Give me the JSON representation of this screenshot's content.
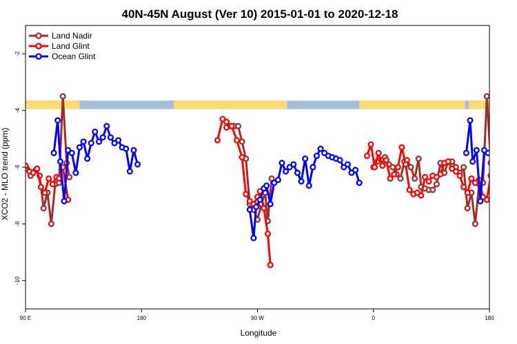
{
  "chart_data": {
    "type": "line",
    "title": "40N-45N August (Ver 10)   2015-01-01 to 2020-12-18",
    "xlabel": "Longitude",
    "ylabel": "XCO2 - MLO trend (ppm)",
    "xlim": [
      90,
      450
    ],
    "ylim": [
      -11,
      -1
    ],
    "x_ticks": [
      {
        "value": 90,
        "label": "90 E"
      },
      {
        "value": 180,
        "label": "180"
      },
      {
        "value": 270,
        "label": "90 W"
      },
      {
        "value": 360,
        "label": "0"
      },
      {
        "value": 450,
        "label": "90 E"
      }
    ],
    "x_ticks_right": [
      {
        "value": 450,
        "label": "180"
      }
    ],
    "y_ticks": [
      {
        "value": -2,
        "label": "-2"
      },
      {
        "value": -4,
        "label": "-4"
      },
      {
        "value": -6,
        "label": "-6"
      },
      {
        "value": -8,
        "label": "-8"
      },
      {
        "value": -10,
        "label": "-10"
      }
    ],
    "grid": false,
    "legend_position": "top-left",
    "land_ocean_band": {
      "y_range": [
        -3.95,
        -3.65
      ],
      "land_color": "#FADB74",
      "ocean_color": "#A6BDDB",
      "land_spans": [
        [
          90,
          132
        ],
        [
          205,
          293
        ],
        [
          349,
          431
        ],
        [
          434,
          450
        ]
      ]
    },
    "series": [
      {
        "name": "Land Nadir",
        "color": "#A52A2A",
        "points": [
          [
            91,
            -6.05
          ],
          [
            94,
            -6.3
          ],
          [
            98,
            -6.1
          ],
          [
            101,
            -6.3
          ],
          [
            104,
            -7.45
          ],
          [
            107,
            -6.9
          ],
          [
            110,
            -8.0
          ],
          [
            113,
            -6.6
          ],
          [
            116,
            -6.55
          ],
          [
            119,
            -3.5
          ],
          [
            122,
            -5.85
          ],
          [
            124,
            -6.35
          ],
          [
            null,
            null
          ],
          [
            246,
            -4.6
          ],
          [
            249,
            -4.55
          ],
          [
            252,
            -4.55
          ],
          [
            255,
            -4.55
          ],
          [
            258,
            -5.1
          ],
          [
            261,
            -5.7
          ],
          [
            264,
            -7.3
          ],
          [
            267,
            -7.5
          ],
          [
            270,
            -7.85
          ],
          [
            273,
            -7.3
          ],
          [
            276,
            -6.9
          ],
          [
            278,
            -7.9
          ],
          [
            281,
            -6.4
          ],
          [
            null,
            null
          ],
          [
            360,
            -6.0
          ],
          [
            363,
            -5.8
          ],
          [
            366,
            -5.75
          ],
          [
            369,
            -5.65
          ],
          [
            372,
            -5.9
          ],
          [
            375,
            -6.0
          ],
          [
            378,
            -6.25
          ],
          [
            381,
            -6.4
          ],
          [
            384,
            -5.8
          ],
          [
            386,
            -5.75
          ],
          [
            389,
            -6.0
          ],
          [
            392,
            -6.4
          ],
          [
            395,
            -5.7
          ],
          [
            397,
            -6.7
          ],
          [
            400,
            -6.75
          ],
          [
            403,
            -6.8
          ],
          [
            406,
            -6.8
          ],
          [
            409,
            -6.6
          ],
          [
            412,
            -5.85
          ],
          [
            415,
            -6.2
          ],
          [
            418,
            -5.8
          ],
          [
            421,
            -5.8
          ],
          [
            424,
            -6.0
          ],
          [
            427,
            -6.2
          ],
          [
            430,
            -6.0
          ],
          [
            433,
            -7.45
          ],
          [
            436,
            -6.9
          ],
          [
            439,
            -8.0
          ],
          [
            442,
            -6.6
          ],
          [
            445,
            -6.55
          ],
          [
            448,
            -3.5
          ],
          [
            451,
            -5.85
          ]
        ]
      },
      {
        "name": "Land Glint",
        "color": "#FF0000",
        "points": [
          [
            90,
            -5.95
          ],
          [
            93,
            -6.15
          ],
          [
            96,
            -6.2
          ],
          [
            99,
            -6.05
          ],
          [
            102,
            -6.7
          ],
          [
            105,
            -6.9
          ],
          [
            108,
            -6.4
          ],
          [
            111,
            -6.6
          ],
          [
            114,
            -6.35
          ],
          [
            116,
            -6.4
          ],
          [
            119,
            -6.0
          ],
          [
            123,
            -7.15
          ],
          [
            null,
            null
          ],
          [
            239,
            -5.05
          ],
          [
            243,
            -4.3
          ],
          [
            246,
            -4.4
          ],
          [
            250,
            -4.55
          ],
          [
            254,
            -5.05
          ],
          [
            258,
            -5.65
          ],
          [
            261,
            -6.95
          ],
          [
            264,
            -7.2
          ],
          [
            267,
            -7.3
          ],
          [
            270,
            -7.05
          ],
          [
            272,
            -6.85
          ],
          [
            275,
            -7.45
          ],
          [
            278,
            -8.35
          ],
          [
            280,
            -9.45
          ],
          [
            null,
            null
          ],
          [
            355,
            -5.6
          ],
          [
            358,
            -5.2
          ],
          [
            361,
            -6.0
          ],
          [
            364,
            -5.5
          ],
          [
            367,
            -5.95
          ],
          [
            370,
            -5.75
          ],
          [
            373,
            -6.4
          ],
          [
            376,
            -6.25
          ],
          [
            379,
            -6.0
          ],
          [
            382,
            -5.3
          ],
          [
            385,
            -5.9
          ],
          [
            388,
            -6.8
          ],
          [
            391,
            -6.95
          ],
          [
            394,
            -6.9
          ],
          [
            397,
            -7.0
          ],
          [
            400,
            -6.35
          ],
          [
            403,
            -6.5
          ],
          [
            406,
            -6.3
          ],
          [
            409,
            -6.35
          ],
          [
            412,
            -6.25
          ],
          [
            415,
            -5.85
          ],
          [
            418,
            -5.8
          ],
          [
            421,
            -6.05
          ],
          [
            424,
            -6.15
          ],
          [
            427,
            -6.3
          ],
          [
            430,
            -6.7
          ],
          [
            433,
            -6.9
          ],
          [
            436,
            -6.4
          ],
          [
            439,
            -6.55
          ],
          [
            442,
            -6.45
          ],
          [
            445,
            -7.05
          ],
          [
            448,
            -7.15
          ],
          [
            451,
            -6.3
          ]
        ]
      },
      {
        "name": "Ocean Glint",
        "color": "#0000FF",
        "points": [
          [
            120,
            -7.2
          ],
          [
            123,
            -5.4
          ],
          [
            126,
            -5.5
          ],
          [
            129,
            -6.2
          ],
          [
            132,
            -5.3
          ],
          [
            135,
            -5.1
          ],
          [
            138,
            -5.7
          ],
          [
            141,
            -5.15
          ],
          [
            144,
            -4.75
          ],
          [
            147,
            -5.1
          ],
          [
            150,
            -4.95
          ],
          [
            153,
            -4.55
          ],
          [
            156,
            -4.95
          ],
          [
            159,
            -5.15
          ],
          [
            162,
            -5.05
          ],
          [
            165,
            -5.3
          ],
          [
            168,
            -5.35
          ],
          [
            171,
            -6.15
          ],
          [
            174,
            -5.4
          ],
          [
            177,
            -5.9
          ],
          [
            null,
            null
          ],
          [
            112,
            -5.5
          ],
          [
            115,
            -4.35
          ],
          [
            117,
            -5.8
          ],
          [
            120,
            -7.2
          ],
          [
            null,
            null
          ],
          [
            264,
            -7.5
          ],
          [
            267,
            -8.5
          ],
          [
            269,
            -7.4
          ],
          [
            272,
            -7.15
          ],
          [
            275,
            -6.75
          ],
          [
            277,
            -6.65
          ],
          [
            280,
            -7.3
          ],
          [
            283,
            -6.55
          ],
          [
            286,
            -6.45
          ],
          [
            289,
            -5.85
          ],
          [
            292,
            -6.15
          ],
          [
            295,
            -6.0
          ],
          [
            298,
            -5.9
          ],
          [
            301,
            -6.2
          ],
          [
            304,
            -6.5
          ],
          [
            307,
            -5.7
          ],
          [
            310,
            -6.65
          ],
          [
            313,
            -6.0
          ],
          [
            316,
            -5.6
          ],
          [
            319,
            -5.35
          ],
          [
            322,
            -5.5
          ],
          [
            325,
            -5.6
          ],
          [
            328,
            -5.65
          ],
          [
            331,
            -5.7
          ],
          [
            334,
            -5.75
          ],
          [
            337,
            -6.0
          ],
          [
            340,
            -5.9
          ],
          [
            343,
            -6.2
          ],
          [
            346,
            -6.1
          ],
          [
            349,
            -6.55
          ],
          [
            null,
            null
          ],
          [
            432,
            -5.5
          ],
          [
            435,
            -4.35
          ],
          [
            437,
            -5.8
          ],
          [
            440,
            -5.4
          ],
          [
            443,
            -7.2
          ],
          [
            446,
            -5.4
          ],
          [
            449,
            -5.5
          ]
        ]
      }
    ]
  }
}
